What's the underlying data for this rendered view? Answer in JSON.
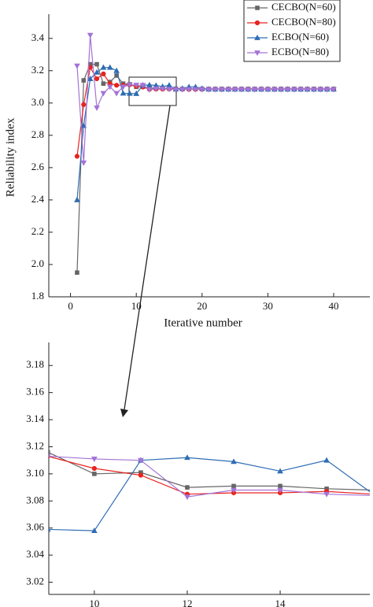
{
  "chart_data": [
    {
      "type": "line",
      "x_label": "Iterative number",
      "y_label": "Reliability index",
      "legend": "top-right",
      "grid": false,
      "x": [
        1,
        2,
        3,
        4,
        5,
        6,
        7,
        8,
        9,
        10,
        11,
        12,
        13,
        14,
        15,
        16,
        17,
        18,
        19,
        20,
        21,
        22,
        23,
        24,
        25,
        26,
        27,
        28,
        29,
        30,
        31,
        32,
        33,
        34,
        35,
        36,
        37,
        38,
        39,
        40
      ],
      "xlim": [
        -3.3,
        45.5
      ],
      "xticks": [
        0,
        10,
        20,
        30,
        40
      ],
      "ylim": [
        1.8,
        3.55
      ],
      "yticks": [
        1.8,
        {
          "value": 2.0,
          "label": "2.0"
        },
        2.2,
        2.4,
        2.6,
        2.8,
        {
          "value": 3.0,
          "label": "3.0"
        },
        3.2,
        3.4
      ],
      "series": [
        {
          "name": "CECBO(N=60)",
          "color": "#666666",
          "marker": "square",
          "values": [
            1.95,
            3.14,
            3.24,
            3.24,
            3.12,
            3.13,
            3.17,
            3.12,
            3.116,
            3.1,
            3.101,
            3.09,
            3.091,
            3.091,
            3.089,
            3.088,
            3.087,
            3.087,
            3.087,
            3.087,
            3.087,
            3.087,
            3.087,
            3.087,
            3.087,
            3.087,
            3.087,
            3.087,
            3.087,
            3.087,
            3.087,
            3.087,
            3.087,
            3.087,
            3.087,
            3.087,
            3.087,
            3.087,
            3.087,
            3.087
          ]
        },
        {
          "name": "CECBO(N=80)",
          "color": "#e8231f",
          "marker": "circle",
          "values": [
            2.67,
            2.99,
            3.22,
            3.15,
            3.18,
            3.12,
            3.11,
            3.11,
            3.113,
            3.104,
            3.099,
            3.085,
            3.086,
            3.086,
            3.087,
            3.085,
            3.085,
            3.085,
            3.085,
            3.085,
            3.085,
            3.085,
            3.085,
            3.085,
            3.085,
            3.085,
            3.085,
            3.085,
            3.085,
            3.085,
            3.085,
            3.085,
            3.085,
            3.085,
            3.085,
            3.085,
            3.085,
            3.085,
            3.085,
            3.085
          ]
        },
        {
          "name": "ECBO(N=60)",
          "color": "#2e6db4",
          "marker": "triangle-up",
          "values": [
            2.4,
            2.86,
            3.15,
            3.19,
            3.22,
            3.22,
            3.2,
            3.06,
            3.059,
            3.058,
            3.11,
            3.112,
            3.109,
            3.102,
            3.11,
            3.085,
            3.09,
            3.1,
            3.1,
            3.09,
            3.085,
            3.085,
            3.085,
            3.085,
            3.085,
            3.085,
            3.085,
            3.085,
            3.085,
            3.085,
            3.085,
            3.085,
            3.085,
            3.085,
            3.085,
            3.085,
            3.085,
            3.085,
            3.085,
            3.085
          ]
        },
        {
          "name": "ECBO(N=80)",
          "color": "#a473d6",
          "marker": "triangle-down",
          "values": [
            3.23,
            2.63,
            3.42,
            2.97,
            3.06,
            3.1,
            3.06,
            3.1,
            3.113,
            3.111,
            3.11,
            3.083,
            3.088,
            3.088,
            3.085,
            3.084,
            3.084,
            3.084,
            3.084,
            3.084,
            3.084,
            3.084,
            3.084,
            3.084,
            3.084,
            3.084,
            3.084,
            3.084,
            3.084,
            3.084,
            3.084,
            3.084,
            3.084,
            3.084,
            3.084,
            3.084,
            3.084,
            3.084,
            3.084,
            3.084
          ]
        }
      ]
    },
    {
      "type": "line",
      "grid": false,
      "x": [
        9,
        10,
        11,
        12,
        13,
        14,
        15,
        16
      ],
      "xlim": [
        9.02,
        15.93
      ],
      "xticks": [
        10,
        12,
        14
      ],
      "ylim": [
        3.011,
        3.197
      ],
      "yticks": [
        3.02,
        3.04,
        3.06,
        3.08,
        {
          "value": 3.1,
          "label": "3.10"
        },
        3.12,
        3.14,
        3.16,
        3.18
      ],
      "series": [
        {
          "color": "#666666",
          "marker": "square",
          "values": [
            3.116,
            3.1,
            3.101,
            3.09,
            3.091,
            3.091,
            3.089,
            3.088
          ]
        },
        {
          "color": "#e8231f",
          "marker": "circle",
          "values": [
            3.113,
            3.104,
            3.099,
            3.085,
            3.086,
            3.086,
            3.087,
            3.085
          ]
        },
        {
          "color": "#2e6db4",
          "marker": "triangle-up",
          "values": [
            3.059,
            3.058,
            3.11,
            3.112,
            3.109,
            3.102,
            3.11,
            3.085
          ]
        },
        {
          "color": "#a473d6",
          "marker": "triangle-down",
          "values": [
            3.113,
            3.111,
            3.11,
            3.083,
            3.088,
            3.088,
            3.085,
            3.084
          ]
        }
      ]
    }
  ]
}
